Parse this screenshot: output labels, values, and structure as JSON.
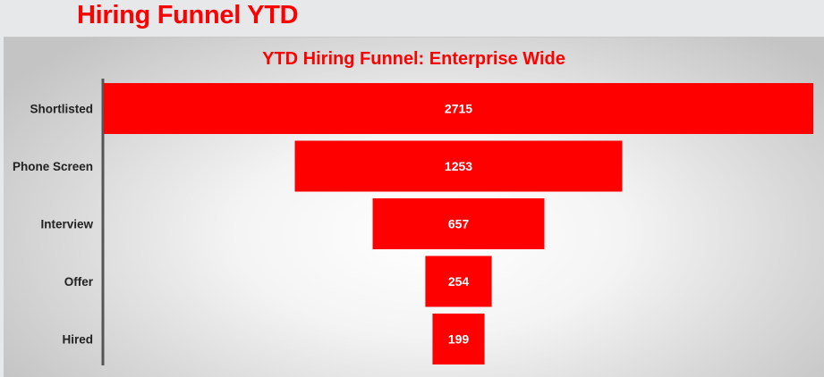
{
  "page": {
    "title": "Hiring Funnel YTD"
  },
  "chart_data": {
    "type": "funnel",
    "title": "YTD Hiring Funnel: Enterprise Wide",
    "categories": [
      "Shortlisted",
      "Phone Screen",
      "Interview",
      "Offer",
      "Hired"
    ],
    "values": [
      2715,
      1253,
      657,
      254,
      199
    ],
    "data_labels": [
      "2715",
      "1253",
      "657",
      "254",
      "199"
    ],
    "bar_color": "#ff0000",
    "data_label_color": "#ffffff",
    "title_color": "#ff0000",
    "grid": false,
    "legend": "none"
  }
}
